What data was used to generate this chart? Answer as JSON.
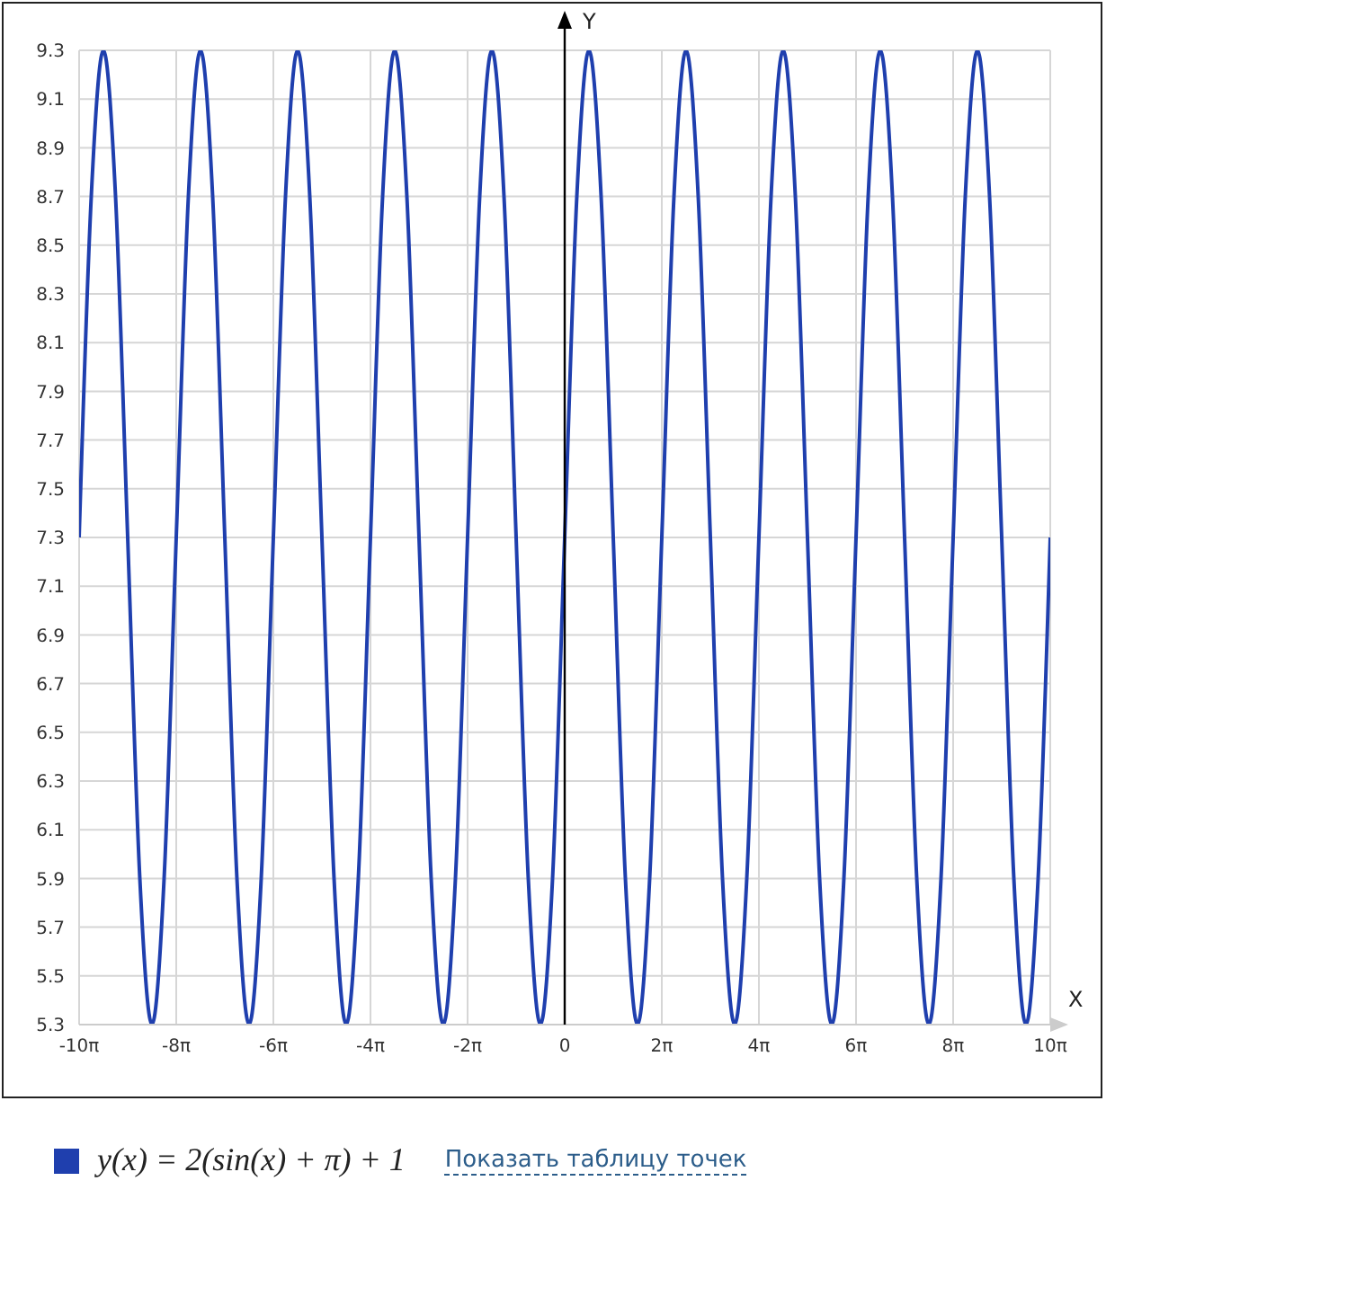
{
  "chart_data": {
    "type": "line",
    "xlabel": "X",
    "ylabel": "Y",
    "x": [
      -31.416,
      -30.631,
      -29.845,
      -29.06,
      -28.274,
      -27.489,
      -26.704,
      -25.918,
      -25.133,
      -24.347,
      -23.562,
      -22.777,
      -21.991,
      -21.206,
      -20.42,
      -19.635,
      -18.85,
      -18.064,
      -17.279,
      -16.493,
      -15.708,
      -14.923,
      -14.137,
      -13.352,
      -12.566,
      -11.781,
      -10.996,
      -10.21,
      -9.425,
      -8.639,
      -7.854,
      -7.069,
      -6.283,
      -5.498,
      -4.712,
      -3.927,
      -3.142,
      -2.356,
      -1.571,
      -0.785,
      0,
      0.785,
      1.571,
      2.356,
      3.142,
      3.927,
      4.712,
      5.498,
      6.283,
      7.069,
      7.854,
      8.639,
      9.425,
      10.21,
      10.996,
      11.781,
      12.566,
      13.352,
      14.137,
      14.923,
      15.708,
      16.493,
      17.279,
      18.064,
      18.85,
      19.635,
      20.42,
      21.206,
      21.991,
      22.777,
      23.562,
      24.347,
      25.133,
      25.918,
      26.704,
      27.489,
      28.274,
      29.06,
      29.845,
      30.631,
      31.416
    ],
    "series": [
      {
        "name": "y(x) = 2(sin(x) + π) + 1",
        "color": "#1f3fae",
        "values": [
          7.3,
          8.7,
          9.3,
          8.7,
          7.3,
          5.9,
          5.3,
          5.9,
          7.3,
          8.7,
          9.3,
          8.7,
          7.3,
          5.9,
          5.3,
          5.9,
          7.3,
          8.7,
          9.3,
          8.7,
          7.3,
          5.9,
          5.3,
          5.9,
          7.3,
          8.7,
          9.3,
          8.7,
          7.3,
          5.9,
          5.3,
          5.9,
          7.3,
          8.7,
          9.3,
          8.7,
          7.3,
          5.9,
          5.3,
          5.9,
          7.3,
          8.7,
          9.3,
          8.7,
          7.3,
          5.9,
          5.3,
          5.9,
          7.3,
          8.7,
          9.3,
          8.7,
          7.3,
          5.9,
          5.3,
          5.9,
          7.3,
          8.7,
          9.3,
          8.7,
          7.3,
          5.9,
          5.3,
          5.9,
          7.3,
          8.7,
          9.3,
          8.7,
          7.3,
          5.9,
          5.3,
          5.9,
          7.3,
          8.7,
          9.3,
          8.7,
          7.3,
          5.9,
          5.3,
          5.9,
          7.3
        ]
      }
    ],
    "xlim": [
      -31.416,
      31.416
    ],
    "xticks": [
      {
        "value": -31.416,
        "label": "-10π"
      },
      {
        "value": -25.133,
        "label": "-8π"
      },
      {
        "value": -18.85,
        "label": "-6π"
      },
      {
        "value": -12.566,
        "label": "-4π"
      },
      {
        "value": -6.283,
        "label": "-2π"
      },
      0,
      {
        "value": 6.283,
        "label": "2π"
      },
      {
        "value": 12.566,
        "label": "4π"
      },
      {
        "value": 18.85,
        "label": "6π"
      },
      {
        "value": 25.133,
        "label": "8π"
      },
      {
        "value": 31.416,
        "label": "10π"
      }
    ],
    "ylim": [
      5.3,
      9.3
    ],
    "yticks": [
      5.3,
      5.5,
      5.7,
      5.9,
      6.1,
      6.3,
      6.5,
      6.7,
      6.9,
      7.1,
      7.3,
      7.5,
      7.7,
      7.9,
      8.1,
      8.3,
      8.5,
      8.7,
      8.9,
      9.1,
      9.3
    ],
    "grid": true,
    "legend": "bottom",
    "marker": "none",
    "line_style": "solid",
    "annotations": [
      "Показать таблицу точек"
    ]
  }
}
